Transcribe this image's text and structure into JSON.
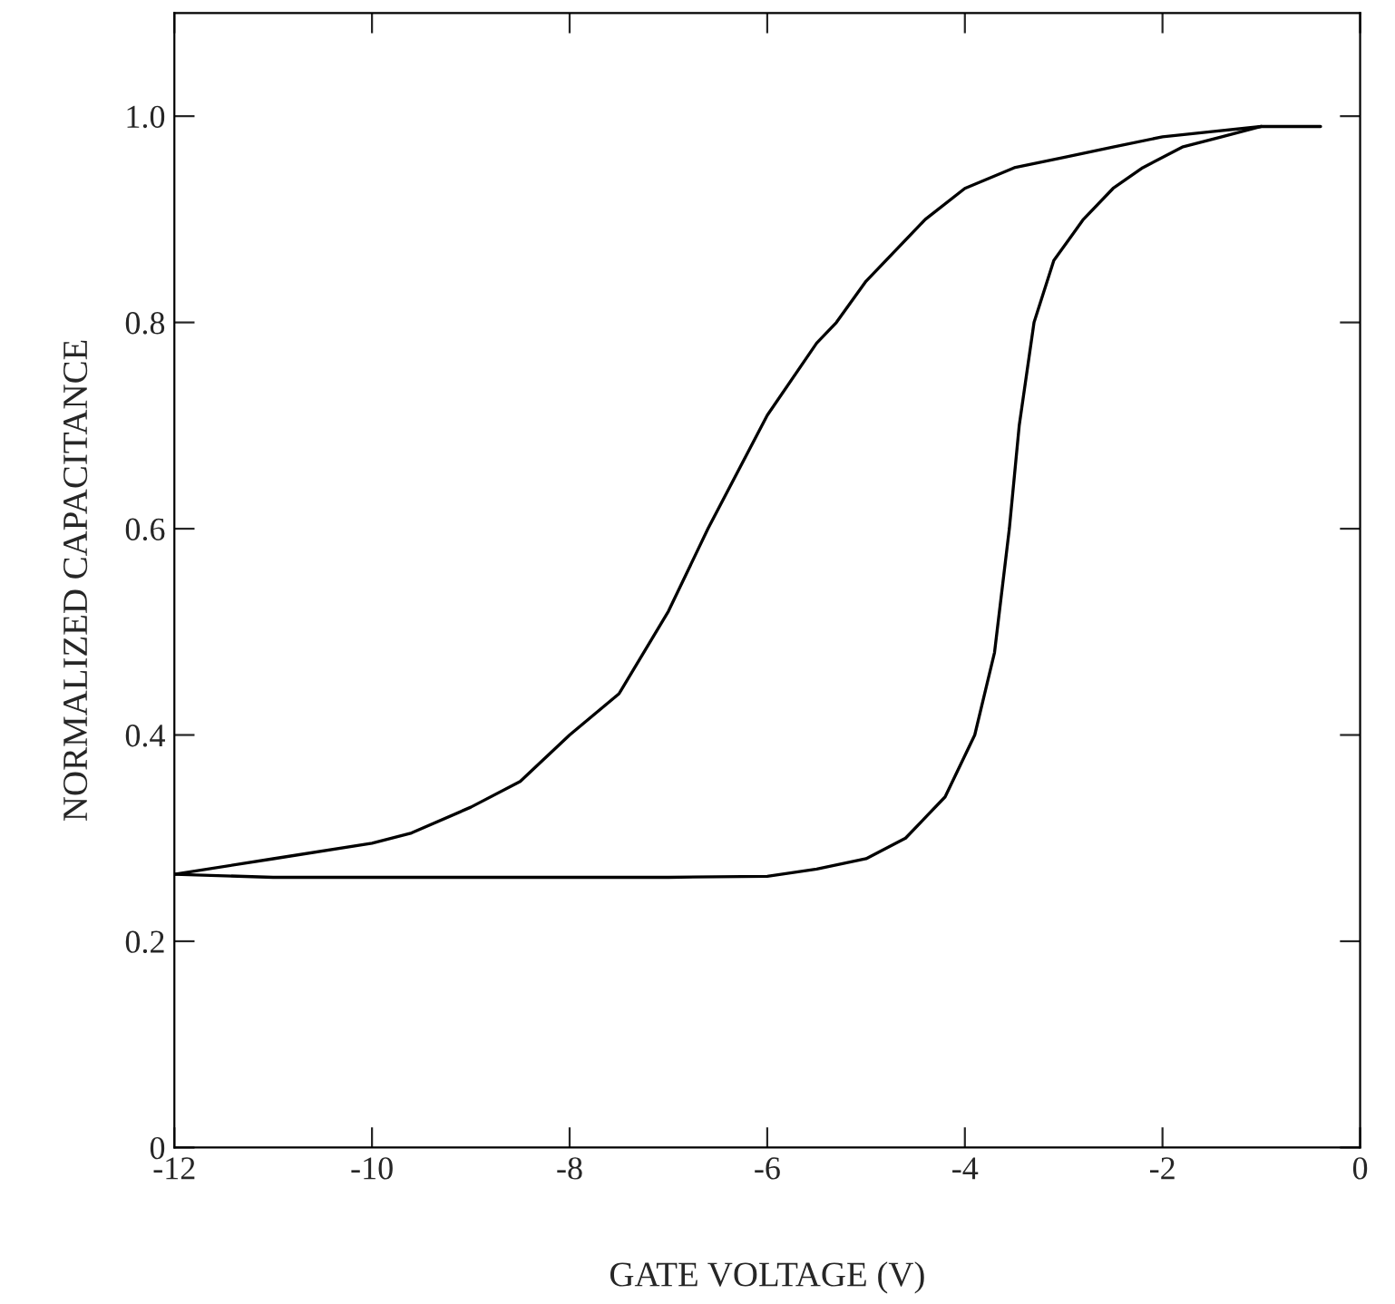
{
  "chart_data": {
    "type": "line",
    "xlabel": "GATE VOLTAGE (V)",
    "ylabel": "NORMALIZED CAPACITANCE",
    "series": [
      {
        "color": "#000000",
        "x": [
          -12,
          -11,
          -10,
          -9.6,
          -9,
          -8.5,
          -8,
          -7.5,
          -7,
          -6.6,
          -6,
          -5.5,
          -5.3,
          -5,
          -4.4,
          -4,
          -3.5,
          -3,
          -2.5,
          -2,
          -1.5,
          -1,
          -0.4
        ],
        "values": [
          0.265,
          0.28,
          0.295,
          0.305,
          0.33,
          0.355,
          0.4,
          0.44,
          0.52,
          0.6,
          0.71,
          0.78,
          0.8,
          0.84,
          0.9,
          0.93,
          0.95,
          0.96,
          0.97,
          0.98,
          0.985,
          0.99,
          0.99
        ]
      },
      {
        "color": "#000000",
        "x": [
          -12,
          -11,
          -10,
          -9,
          -8,
          -7,
          -6,
          -5.5,
          -5,
          -4.6,
          -4.2,
          -3.9,
          -3.7,
          -3.55,
          -3.45,
          -3.3,
          -3.1,
          -2.8,
          -2.5,
          -2.2,
          -1.8,
          -1.4,
          -1
        ],
        "values": [
          0.265,
          0.262,
          0.262,
          0.262,
          0.262,
          0.262,
          0.263,
          0.27,
          0.28,
          0.3,
          0.34,
          0.4,
          0.48,
          0.6,
          0.7,
          0.8,
          0.86,
          0.9,
          0.93,
          0.95,
          0.97,
          0.98,
          0.99
        ]
      }
    ],
    "xlim": [
      -12,
      0
    ],
    "xticks": [
      -12,
      -10,
      -8,
      -6,
      -4,
      -2,
      0
    ],
    "ylim": [
      0,
      1.1
    ],
    "yticks": [
      0,
      0.2,
      0.4,
      0.6,
      0.8,
      {
        "value": 1,
        "label": "1.0"
      }
    ],
    "grid": false,
    "marker": "none",
    "line_style": "solid"
  }
}
